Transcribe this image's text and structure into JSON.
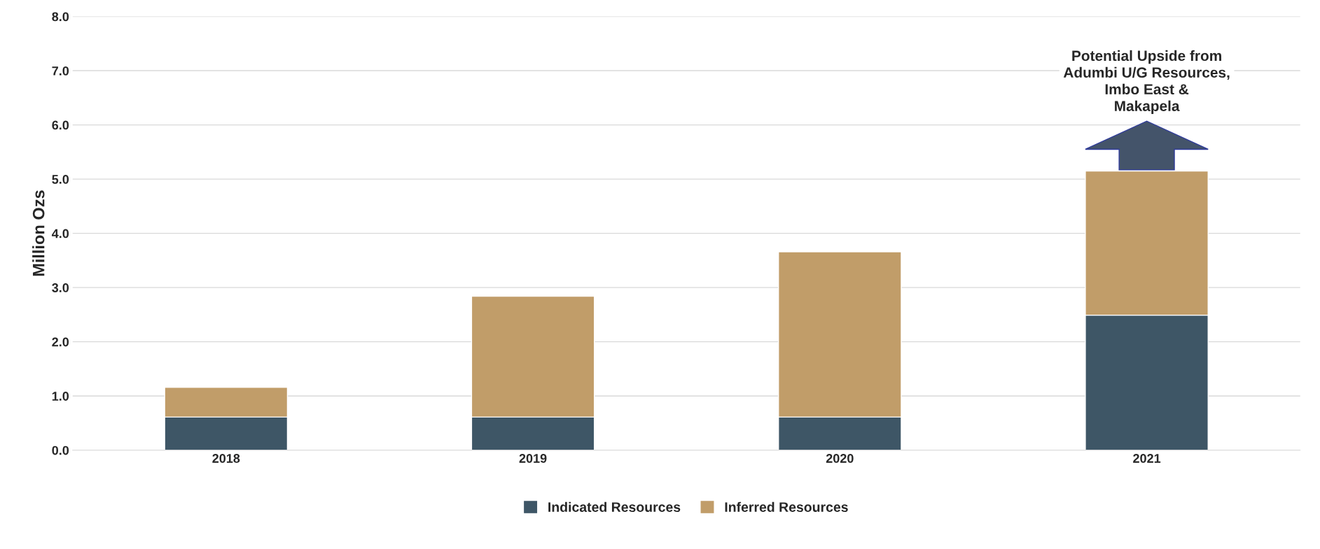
{
  "chart_data": {
    "type": "bar",
    "stacked": true,
    "ylabel": "Million Ozs",
    "categories": [
      "2018",
      "2019",
      "2020",
      "2021"
    ],
    "series": [
      {
        "name": "Indicated Resources",
        "color": "#3e5666",
        "values": [
          0.61,
          0.61,
          0.61,
          2.49
        ]
      },
      {
        "name": "Inferred Resources",
        "color": "#c19d69",
        "values": [
          0.55,
          2.23,
          3.05,
          2.66
        ]
      }
    ],
    "ylim": [
      0,
      8
    ],
    "yticks": [
      {
        "value": 0,
        "label": "0.0"
      },
      {
        "value": 1,
        "label": "1.0"
      },
      {
        "value": 2,
        "label": "2.0"
      },
      {
        "value": 3,
        "label": "3.0"
      },
      {
        "value": 4,
        "label": "4.0"
      },
      {
        "value": 5,
        "label": "5.0"
      },
      {
        "value": 6,
        "label": "6.0"
      },
      {
        "value": 7,
        "label": "7.0"
      },
      {
        "value": 8,
        "label": "8.0"
      }
    ],
    "grid": "y",
    "legend": "bottom",
    "annotations": [
      "Potential Upside from\nAdumbi U/G Resources,\nImbo East &\nMakapela"
    ]
  }
}
